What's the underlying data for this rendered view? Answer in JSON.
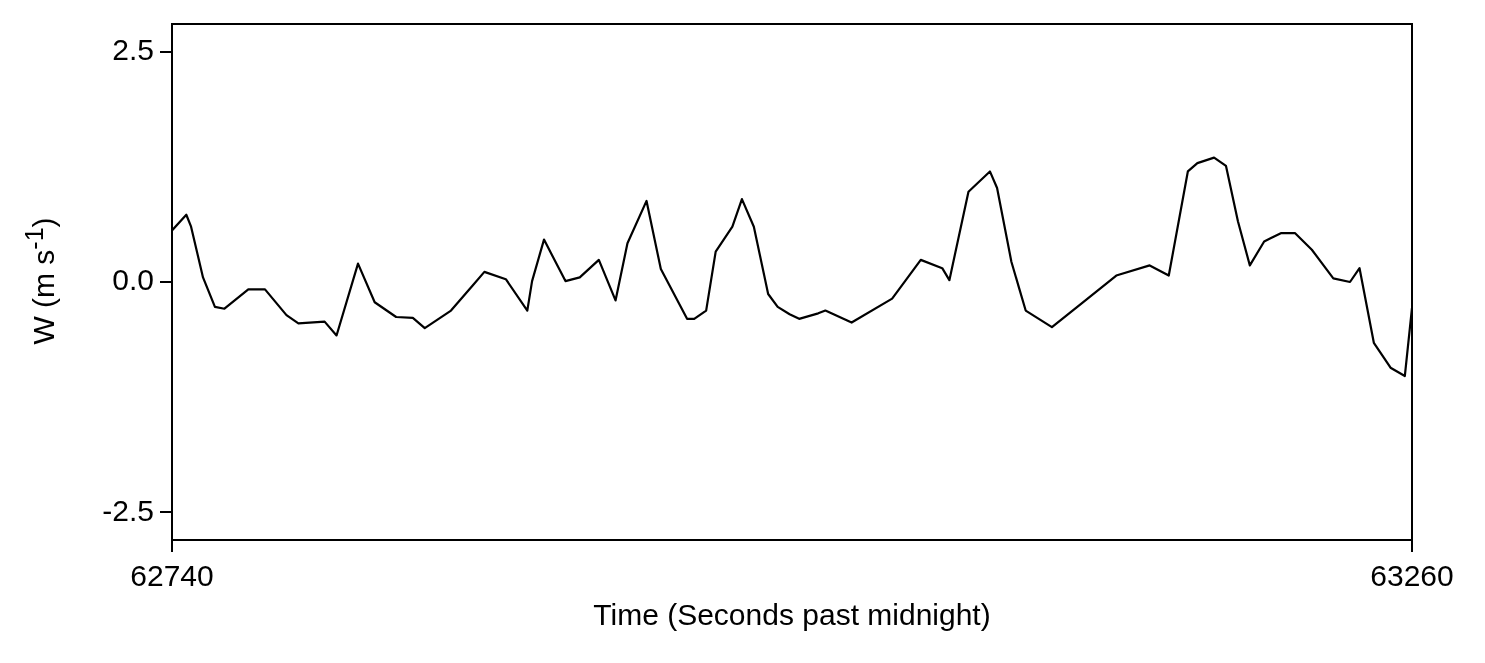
{
  "chart_data": {
    "type": "line",
    "xlabel": "Time (Seconds past midnight)",
    "ylabel": "W (m s$^{-1}$)",
    "xlim": [
      62740,
      63260
    ],
    "xticks": [
      62740,
      63260
    ],
    "ylim": [
      -2.8,
      2.8
    ],
    "yticks": [
      2.5,
      {
        "value": 0,
        "label": "0.0"
      },
      -2.5
    ],
    "grid": false,
    "legend": false,
    "marker": "none",
    "line_style": "solid",
    "series": [
      {
        "color": "#000000",
        "x": [
          62740,
          62746,
          62748,
          62753,
          62758,
          62762,
          62772,
          62779,
          62788,
          62793,
          62804,
          62809,
          62818,
          62825,
          62834,
          62841,
          62846,
          62857,
          62866,
          62871,
          62880,
          62889,
          62891,
          62896,
          62905,
          62911,
          62919,
          62926,
          62931,
          62939,
          62945,
          62956,
          62959,
          62964,
          62968,
          62975,
          62979,
          62984,
          62990,
          62994,
          62999,
          63003,
          63011,
          63014,
          63025,
          63042,
          63054,
          63063,
          63066,
          63074,
          63083,
          63086,
          63092,
          63098,
          63109,
          63122,
          63136,
          63150,
          63158,
          63166,
          63170,
          63177,
          63182,
          63187,
          63192,
          63198,
          63205,
          63211,
          63218,
          63227,
          63234,
          63238,
          63244,
          63251,
          63257,
          63260
        ],
        "values": [
          0.56,
          0.73,
          0.6,
          0.05,
          -0.27,
          -0.29,
          -0.08,
          -0.08,
          -0.36,
          -0.45,
          -0.43,
          -0.58,
          0.2,
          -0.22,
          -0.38,
          -0.39,
          -0.5,
          -0.31,
          -0.04,
          0.11,
          0.03,
          -0.31,
          0.01,
          0.46,
          0.01,
          0.05,
          0.24,
          -0.2,
          0.42,
          0.88,
          0.14,
          -0.4,
          -0.4,
          -0.31,
          0.33,
          0.6,
          0.9,
          0.6,
          -0.13,
          -0.27,
          -0.35,
          -0.4,
          -0.34,
          -0.31,
          -0.44,
          -0.18,
          0.24,
          0.15,
          0.02,
          0.98,
          1.2,
          1.02,
          0.22,
          -0.31,
          -0.49,
          -0.22,
          0.07,
          0.18,
          0.07,
          1.2,
          1.29,
          1.35,
          1.26,
          0.66,
          0.18,
          0.44,
          0.53,
          0.53,
          0.35,
          0.04,
          0,
          0.15,
          -0.66,
          -0.93,
          -1.02,
          -0.28
        ]
      }
    ]
  }
}
